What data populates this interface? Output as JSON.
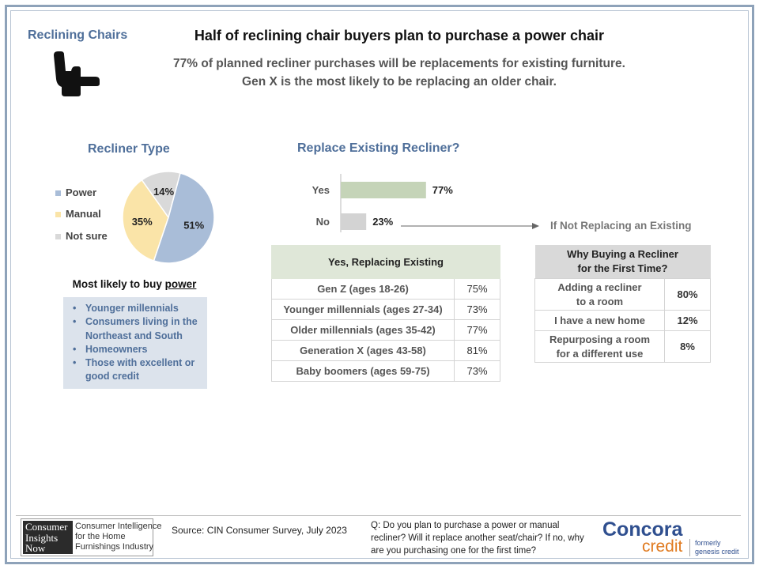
{
  "header": {
    "section_label": "Reclining Chairs",
    "title": "Half of reclining chair buyers plan to purchase a power chair",
    "subtitle_line1": "77% of planned recliner purchases will be replacements for existing furniture.",
    "subtitle_line2": "Gen X is the most likely to be replacing an older chair."
  },
  "icon": {
    "name": "recliner-chair-icon"
  },
  "colors": {
    "power": "#a9bdd8",
    "manual": "#fae4a8",
    "not_sure": "#d9d9d9",
    "yes_bar": "#c5d4b8",
    "no_bar": "#d3d3d3",
    "title_blue": "#4f6f9a"
  },
  "chart_data": [
    {
      "type": "pie",
      "title": "Recliner Type",
      "legend_position": "left",
      "slices": [
        {
          "label": "Power",
          "value": 51,
          "display": "51%"
        },
        {
          "label": "Manual",
          "value": 35,
          "display": "35%"
        },
        {
          "label": "Not sure",
          "value": 14,
          "display": "14%"
        }
      ]
    },
    {
      "type": "bar",
      "orientation": "horizontal",
      "title": "Replace Existing Recliner?",
      "categories": [
        "Yes",
        "No"
      ],
      "values": [
        77,
        23
      ],
      "value_labels": [
        "77%",
        "23%"
      ],
      "xlim": [
        0,
        100
      ]
    }
  ],
  "power_box": {
    "heading_prefix": "Most likely to buy ",
    "heading_underlined": "power",
    "bullet_glyph": "•",
    "items": [
      "Younger millennials",
      "Consumers living in the Northeast and South",
      "Homeowners",
      "Those with excellent or good credit"
    ]
  },
  "replacing_table": {
    "header": "Yes, Replacing Existing",
    "rows": [
      {
        "label": "Gen Z (ages 18-26)",
        "value": "75%"
      },
      {
        "label": "Younger millennials (ages 27-34)",
        "value": "73%"
      },
      {
        "label": "Older millennials (ages 35-42)",
        "value": "77%"
      },
      {
        "label": "Generation X (ages 43-58)",
        "value": "81%"
      },
      {
        "label": "Baby boomers (ages 59-75)",
        "value": "73%"
      }
    ]
  },
  "not_replacing": {
    "arrow_label": "If Not Replacing an Existing",
    "header_line1": "Why Buying a Recliner",
    "header_line2": "for the First Time?",
    "rows": [
      {
        "label_line1": "Adding a recliner",
        "label_line2": "to a room",
        "value": "80%"
      },
      {
        "label_line1": "I have a new home",
        "label_line2": "",
        "value": "12%"
      },
      {
        "label_line1": "Repurposing a room",
        "label_line2": "for a different use",
        "value": "8%"
      }
    ]
  },
  "footer": {
    "cin_logo": {
      "line1": "Consumer",
      "line2": "Insights",
      "line3": "Now",
      "tag1": "Consumer Intelligence",
      "tag2": "for the Home",
      "tag3": "Furnishings Industry"
    },
    "source": "Source: CIN Consumer Survey, July 2023",
    "question": "Q: Do you plan to purchase a power or manual recliner? Will it replace another seat/chair? If no, why are you purchasing one for the first time?",
    "concora": {
      "main": "Concora",
      "sub": "credit",
      "formerly1": "formerly",
      "formerly2": "genesis credit"
    }
  }
}
